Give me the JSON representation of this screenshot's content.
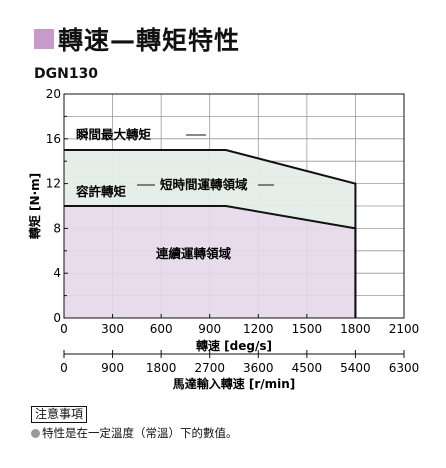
{
  "header": {
    "title": "轉速—轉矩特性",
    "model": "DGN130"
  },
  "note": {
    "label": "注意事項",
    "text": "特性是在一定溫度（常溫）下的數值。"
  },
  "colors": {
    "title_square": "#c79ac9",
    "continuous_fill": "#e6d8ea",
    "shorttime_fill": "#e5ede8",
    "grid": "#999999"
  },
  "chart_data": {
    "type": "area",
    "ylabel": "轉矩 [N·m]",
    "xlabel": "轉速 [deg/s]",
    "x2label": "馬達輸入轉速 [r/min]",
    "xlim": [
      0,
      2100
    ],
    "ylim": [
      0,
      20
    ],
    "x2lim": [
      0,
      6300
    ],
    "x_ticks": [
      "0",
      "300",
      "600",
      "900",
      "1200",
      "1500",
      "1800",
      "2100"
    ],
    "x2_ticks": [
      "0",
      "900",
      "1800",
      "2700",
      "3600",
      "4500",
      "5400",
      "6300"
    ],
    "y_ticks": [
      "0",
      "4",
      "8",
      "12",
      "16",
      "20"
    ],
    "grid": true,
    "series": [
      {
        "name": "瞬間最大轉矩",
        "x": [
          0,
          1000,
          1800,
          1800
        ],
        "y": [
          15,
          15,
          12,
          0
        ]
      },
      {
        "name": "容許轉矩",
        "x": [
          0,
          1000,
          1800,
          1800
        ],
        "y": [
          10,
          10,
          8,
          0
        ]
      }
    ],
    "regions": [
      {
        "name": "短時間運轉領域",
        "between": [
          "容許轉矩",
          "瞬間最大轉矩"
        ]
      },
      {
        "name": "連續運轉領域",
        "below": "容許轉矩"
      }
    ],
    "annotations": [
      "瞬間最大轉矩",
      "容許轉矩",
      "短時間運轉領域",
      "連續運轉領域"
    ]
  }
}
